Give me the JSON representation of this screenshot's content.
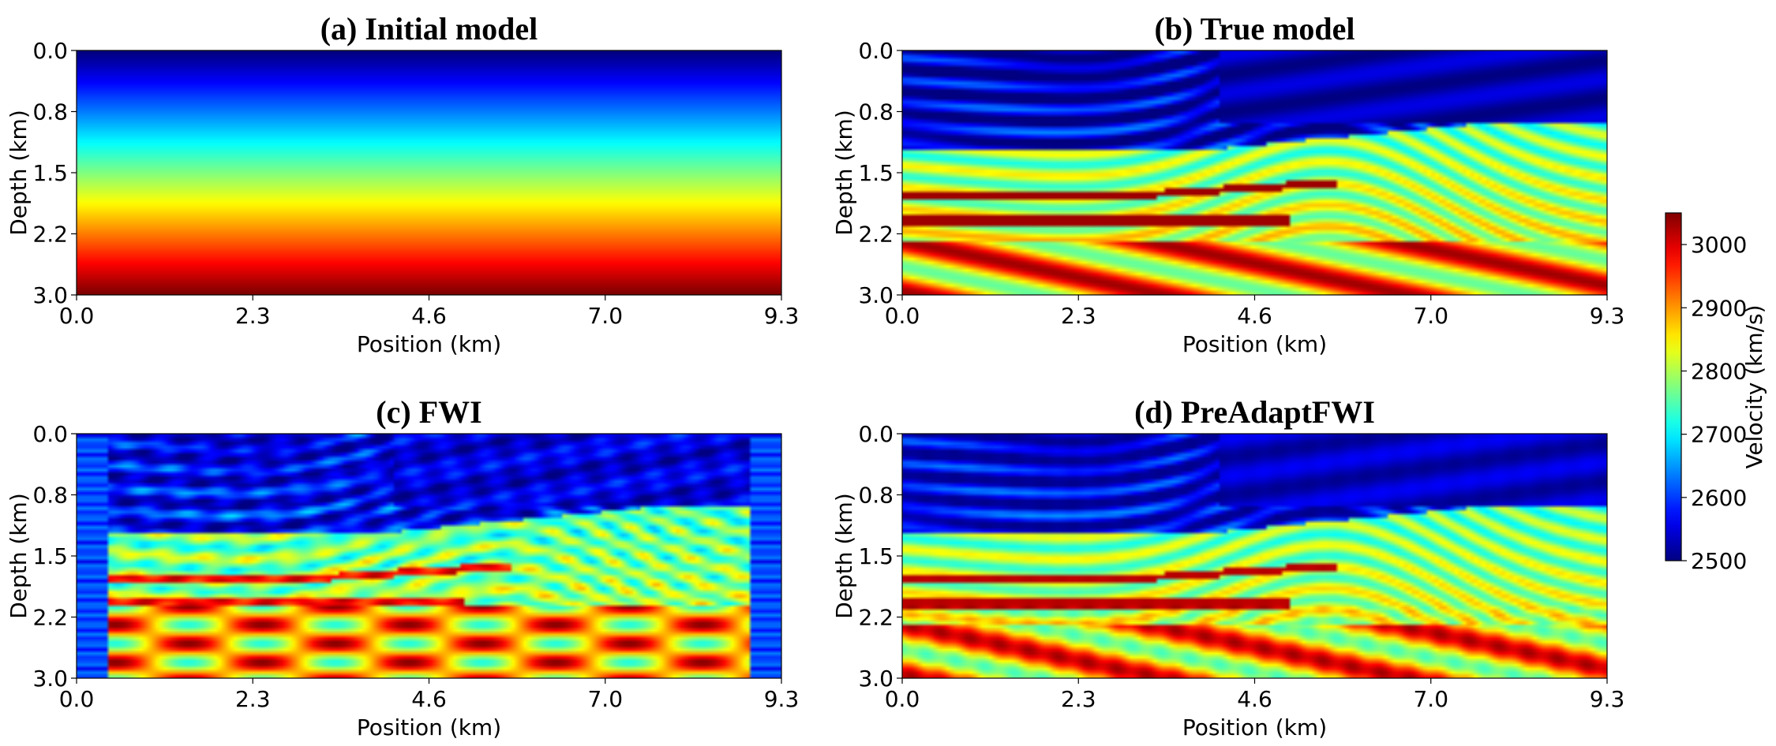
{
  "chart_data": {
    "type": "heatmap",
    "colormap": "jet",
    "panels": [
      {
        "id": "a",
        "title": "(a) Initial model",
        "model": "initial",
        "xlabel": "Position (km)",
        "ylabel": "Depth (km)",
        "xticks": [
          "0.0",
          "2.3",
          "4.6",
          "7.0",
          "9.3"
        ],
        "yticks": [
          "0.0",
          "0.8",
          "1.5",
          "2.2",
          "3.0"
        ],
        "xlim": [
          0,
          9.3
        ],
        "ylim": [
          0,
          3.0
        ]
      },
      {
        "id": "b",
        "title": "(b) True model",
        "model": "true",
        "xlabel": "Position (km)",
        "ylabel": "Depth (km)",
        "xticks": [
          "0.0",
          "2.3",
          "4.6",
          "7.0",
          "9.3"
        ],
        "yticks": [
          "0.0",
          "0.8",
          "1.5",
          "2.2",
          "3.0"
        ],
        "xlim": [
          0,
          9.3
        ],
        "ylim": [
          0,
          3.0
        ]
      },
      {
        "id": "c",
        "title": "(c) FWI",
        "model": "fwi",
        "xlabel": "Position (km)",
        "ylabel": "Depth (km)",
        "xticks": [
          "0.0",
          "2.3",
          "4.6",
          "7.0",
          "9.3"
        ],
        "yticks": [
          "0.0",
          "0.8",
          "1.5",
          "2.2",
          "3.0"
        ],
        "xlim": [
          0,
          9.3
        ],
        "ylim": [
          0,
          3.0
        ]
      },
      {
        "id": "d",
        "title": "(d) PreAdaptFWI",
        "model": "preadapt",
        "xlabel": "Position (km)",
        "ylabel": "Depth (km)",
        "xticks": [
          "0.0",
          "2.3",
          "4.6",
          "7.0",
          "9.3"
        ],
        "yticks": [
          "0.0",
          "0.8",
          "1.5",
          "2.2",
          "3.0"
        ],
        "xlim": [
          0,
          9.3
        ],
        "ylim": [
          0,
          3.0
        ]
      }
    ],
    "colorbar": {
      "label": "Velocity (km/s)",
      "vmin": 2500,
      "vmax": 3050,
      "ticks": [
        "2500",
        "2600",
        "2700",
        "2800",
        "2900",
        "3000"
      ]
    }
  }
}
